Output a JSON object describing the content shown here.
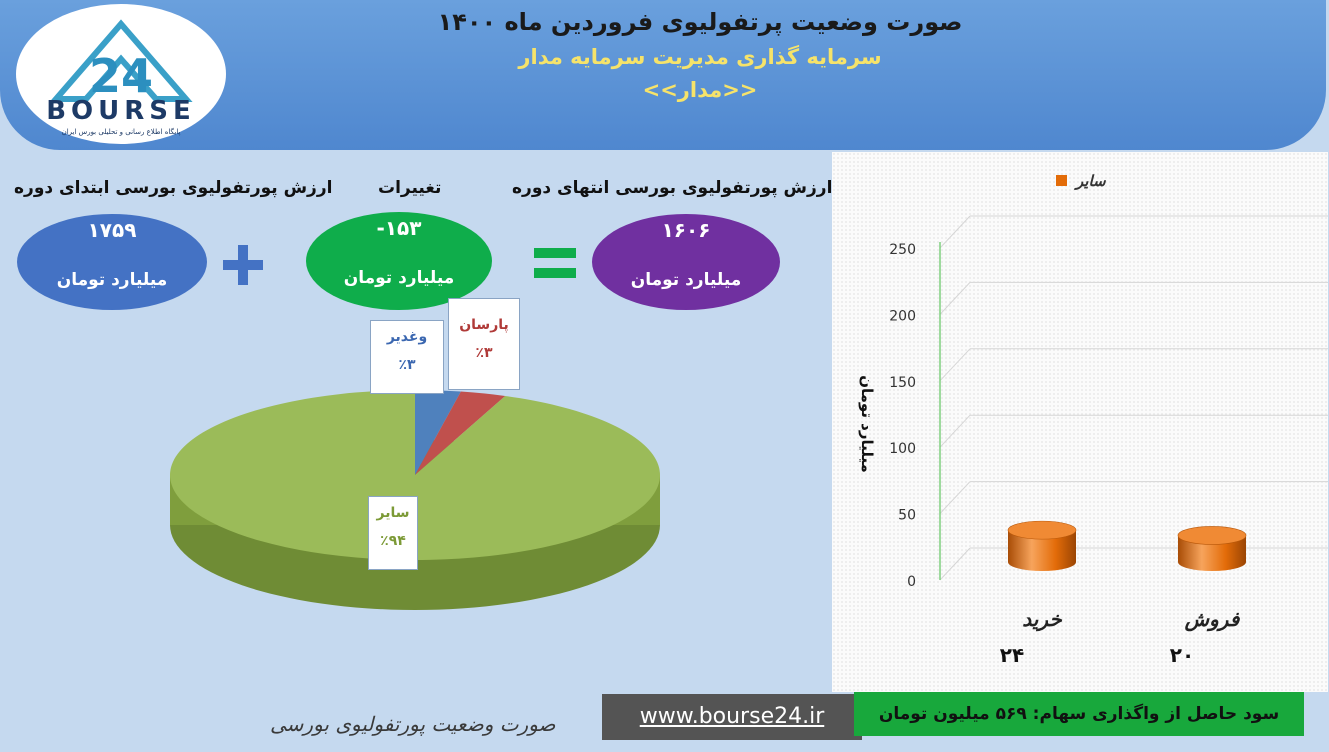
{
  "header": {
    "title": "صورت وضعیت پرتفولیوی فروردین ماه ۱۴۰۰",
    "subtitle": "سرمایه گذاری مدیریت سرمایه مدار",
    "symbol": "<<مدار>>",
    "logo_word": "BOURSE",
    "logo_sub": "پایگاه اطلاع رسانی و تحلیلی بورس ایران"
  },
  "equation": {
    "start_label": "ارزش پورتفولیوی بورسی ابتدای دوره",
    "start_value": "۱۷۵۹",
    "change_label": "تغییرات",
    "change_value": "-۱۵۳",
    "end_label": "ارزش پورتفولیوی بورسی انتهای دوره",
    "end_value": "۱۶۰۶",
    "unit": "میلیارد تومان"
  },
  "colors": {
    "start": "#4472c4",
    "change": "#0fad4b",
    "end": "#7030a0",
    "plus": "#4472c4",
    "equals": "#0fad4b",
    "pie_other": "#9bbb59",
    "pie_vaghadir": "#4f81bd",
    "pie_parsan": "#c0504d",
    "bar": "#e36c09"
  },
  "chart_data": [
    {
      "type": "pie",
      "slices": [
        {
          "name": "سایر",
          "value": 94,
          "label": "٪۹۴"
        },
        {
          "name": "وغدیر",
          "value": 3,
          "label": "٪۳"
        },
        {
          "name": "پارسان",
          "value": 3,
          "label": "٪۳"
        }
      ]
    },
    {
      "type": "bar",
      "legend": "سایر",
      "legend_position": "top",
      "ylabel": "میلیارد تومان",
      "ylim": [
        0,
        250
      ],
      "yticks": [
        "0",
        "50",
        "100",
        "150",
        "200",
        "250"
      ],
      "categories": [
        "خرید",
        "فروش"
      ],
      "values": [
        24,
        20
      ],
      "value_labels": [
        "۲۴",
        "۲۰"
      ]
    }
  ],
  "footer": {
    "title": "صورت وضعیت پورتفولیوی بورسی",
    "url": "www.bourse24.ir",
    "profit_text": "سود حاصل از واگذاری سهام: ۵۶۹ میلیون تومان"
  }
}
